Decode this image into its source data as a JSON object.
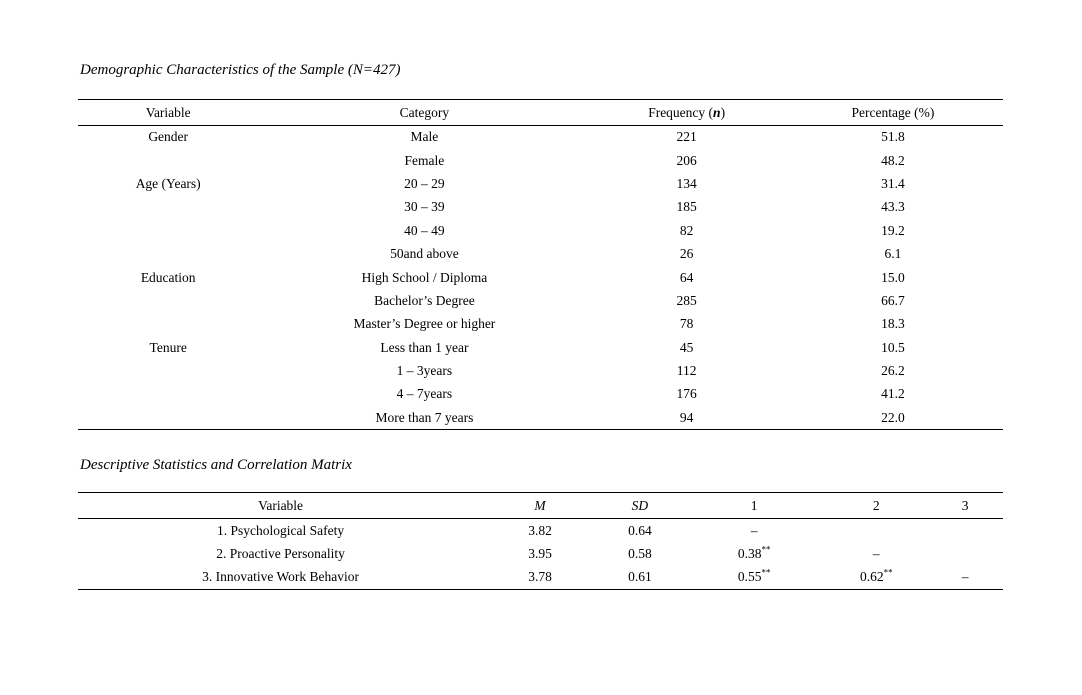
{
  "table1": {
    "title": "Demographic Characteristics of the Sample (N=427)",
    "header": {
      "variable": "Variable",
      "category": "Category",
      "frequency_prefix": "Frequency (",
      "frequency_n": "n",
      "frequency_suffix": ")",
      "percentage": "Percentage (%)"
    },
    "rows": [
      {
        "variable": "Gender",
        "category": "Male",
        "frequency": "221",
        "percentage": "51.8"
      },
      {
        "variable": "",
        "category": "Female",
        "frequency": "206",
        "percentage": "48.2"
      },
      {
        "variable": "Age (Years)",
        "category": "20 – 29",
        "frequency": "134",
        "percentage": "31.4"
      },
      {
        "variable": "",
        "category": "30 – 39",
        "frequency": "185",
        "percentage": "43.3"
      },
      {
        "variable": "",
        "category": "40 – 49",
        "frequency": "82",
        "percentage": "19.2"
      },
      {
        "variable": "",
        "category": "50and above",
        "frequency": "26",
        "percentage": "6.1"
      },
      {
        "variable": "Education",
        "category": "High School / Diploma",
        "frequency": "64",
        "percentage": "15.0"
      },
      {
        "variable": "",
        "category": "Bachelor’s Degree",
        "frequency": "285",
        "percentage": "66.7"
      },
      {
        "variable": "",
        "category": "Master’s Degree or higher",
        "frequency": "78",
        "percentage": "18.3"
      },
      {
        "variable": "Tenure",
        "category": "Less than 1 year",
        "frequency": "45",
        "percentage": "10.5"
      },
      {
        "variable": "",
        "category": "1 – 3years",
        "frequency": "112",
        "percentage": "26.2"
      },
      {
        "variable": "",
        "category": "4 – 7years",
        "frequency": "176",
        "percentage": "41.2"
      },
      {
        "variable": "",
        "category": "More than 7 years",
        "frequency": "94",
        "percentage": "22.0"
      }
    ]
  },
  "table2": {
    "title": "Descriptive Statistics and Correlation Matrix",
    "header": {
      "variable": "Variable",
      "m": "M",
      "sd": "SD",
      "c1": "1",
      "c2": "2",
      "c3": "3"
    },
    "rows": [
      {
        "variable": "1. Psychological Safety",
        "m": "3.82",
        "sd": "0.64",
        "c1": "–",
        "c1sup": "",
        "c2": "",
        "c2sup": "",
        "c3": "",
        "c3sup": ""
      },
      {
        "variable": "2. Proactive Personality",
        "m": "3.95",
        "sd": "0.58",
        "c1": "0.38",
        "c1sup": "**",
        "c2": "–",
        "c2sup": "",
        "c3": "",
        "c3sup": ""
      },
      {
        "variable": "3. Innovative Work Behavior",
        "m": "3.78",
        "sd": "0.61",
        "c1": "0.55",
        "c1sup": "**",
        "c2": "0.62",
        "c2sup": "**",
        "c3": "–",
        "c3sup": ""
      }
    ]
  }
}
